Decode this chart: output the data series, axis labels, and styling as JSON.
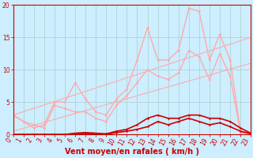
{
  "xlabel": "Vent moyen/en rafales ( km/h )",
  "bg_color": "#cceeff",
  "grid_color": "#aacccc",
  "xlim": [
    0,
    23
  ],
  "ylim": [
    0,
    20
  ],
  "xticks": [
    0,
    1,
    2,
    3,
    4,
    5,
    6,
    7,
    8,
    9,
    10,
    11,
    12,
    13,
    14,
    15,
    16,
    17,
    18,
    19,
    20,
    21,
    22,
    23
  ],
  "yticks": [
    0,
    5,
    10,
    15,
    20
  ],
  "series_light": [
    {
      "x": [
        0,
        1,
        2,
        3,
        4,
        5,
        6,
        7,
        8,
        9,
        10,
        11,
        12,
        13,
        14,
        15,
        16,
        17,
        18,
        19,
        20,
        21,
        22,
        23
      ],
      "y": [
        3.0,
        2.0,
        1.0,
        1.5,
        5.0,
        5.0,
        8.0,
        5.5,
        3.5,
        3.0,
        5.5,
        7.0,
        11.5,
        16.5,
        11.5,
        11.5,
        13.0,
        19.5,
        19.0,
        11.5,
        15.5,
        11.5,
        0.5,
        0.2
      ]
    },
    {
      "x": [
        0,
        1,
        2,
        3,
        4,
        5,
        6,
        7,
        8,
        9,
        10,
        11,
        12,
        13,
        14,
        15,
        16,
        17,
        18,
        19,
        20,
        21,
        22,
        23
      ],
      "y": [
        3.0,
        2.0,
        1.5,
        1.0,
        4.5,
        4.0,
        3.5,
        3.5,
        2.5,
        2.0,
        4.5,
        6.0,
        8.0,
        10.0,
        9.0,
        8.5,
        9.5,
        13.0,
        12.0,
        8.5,
        12.5,
        9.0,
        0.3,
        0.1
      ]
    },
    {
      "x": [
        0,
        23
      ],
      "y": [
        0.5,
        11.0
      ]
    },
    {
      "x": [
        0,
        23
      ],
      "y": [
        3.0,
        15.0
      ]
    }
  ],
  "series_dark": [
    {
      "x": [
        0,
        1,
        2,
        3,
        4,
        5,
        6,
        7,
        8,
        9,
        10,
        11,
        12,
        13,
        14,
        15,
        16,
        17,
        18,
        19,
        20,
        21,
        22,
        23
      ],
      "y": [
        0,
        0,
        0,
        0,
        0,
        0,
        0.2,
        0.3,
        0.2,
        0.1,
        0.5,
        0.8,
        1.5,
        2.5,
        3.0,
        2.5,
        2.5,
        3.0,
        3.0,
        2.5,
        2.5,
        2.0,
        1.0,
        0.2
      ]
    },
    {
      "x": [
        0,
        1,
        2,
        3,
        4,
        5,
        6,
        7,
        8,
        9,
        10,
        11,
        12,
        13,
        14,
        15,
        16,
        17,
        18,
        19,
        20,
        21,
        22,
        23
      ],
      "y": [
        0,
        0,
        0,
        0,
        0,
        0,
        0.1,
        0.1,
        0.1,
        0.0,
        0.3,
        0.5,
        0.8,
        1.2,
        2.0,
        1.5,
        2.0,
        2.5,
        2.0,
        1.5,
        1.8,
        1.2,
        0.5,
        0.1
      ]
    }
  ],
  "color_light": "#ffaaaa",
  "color_dark": "#cc0000",
  "axis_color": "#cc0000",
  "tick_color": "#cc0000",
  "label_color": "#cc0000",
  "xlabel_fontsize": 7,
  "tick_fontsize": 5.5,
  "linewidth_light": 1.0,
  "linewidth_dark": 1.2,
  "markersize_light": 2.0,
  "markersize_dark": 1.8
}
